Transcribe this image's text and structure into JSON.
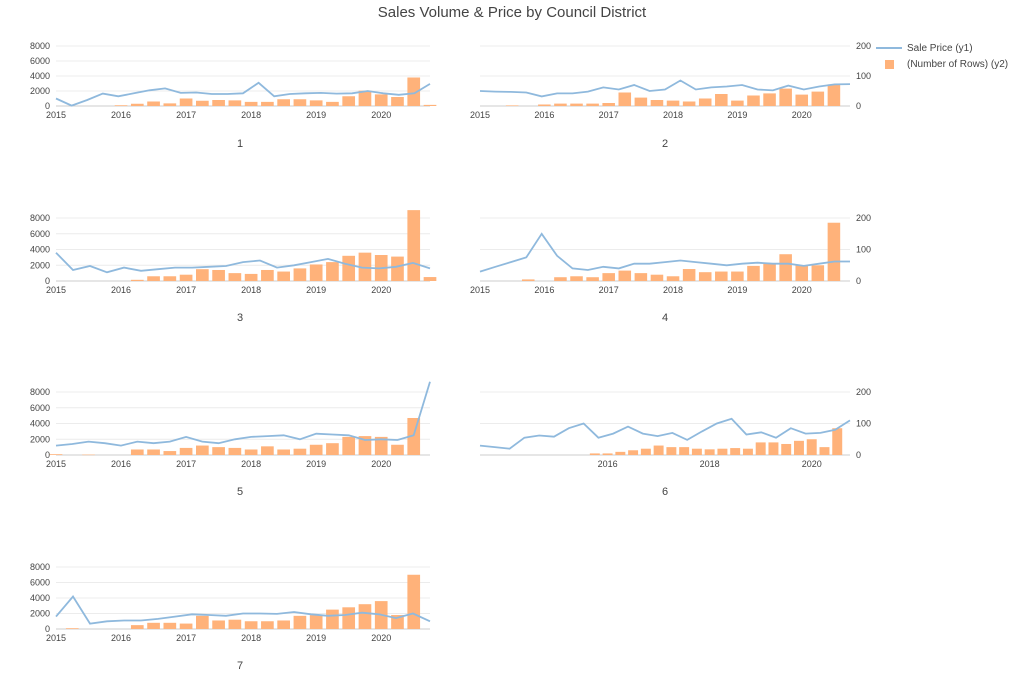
{
  "title": "Sales Volume & Price by Council District",
  "colors": {
    "line": "#8fb9dd",
    "bar": "#ffb27a",
    "grid": "#ececec",
    "axis": "#cccccc",
    "text": "#444444"
  },
  "legend": {
    "line_label": "Sale Price (y1)",
    "bar_label": "(Number of Rows) (y2)"
  },
  "chart_data": [
    {
      "type": "line+bar",
      "facet": "1",
      "y1ticks": [
        "0",
        "2000",
        "4000",
        "6000",
        "8000"
      ],
      "y1range": [
        0,
        8000
      ],
      "xticks": [
        "2015",
        "2016",
        "2017",
        "2018",
        "2019",
        "2020"
      ],
      "line": [
        1000,
        50,
        800,
        1650,
        1300,
        1700,
        2100,
        2350,
        1750,
        1800,
        1600,
        1600,
        1700,
        3100,
        1300,
        1600,
        1700,
        1750,
        1650,
        1700,
        2000,
        1700,
        1500,
        1700,
        2950
      ],
      "bars": [
        {
          "x": 2016.0,
          "v": 100
        },
        {
          "x": 2016.25,
          "v": 300
        },
        {
          "x": 2016.5,
          "v": 600
        },
        {
          "x": 2016.75,
          "v": 350
        },
        {
          "x": 2017.0,
          "v": 1000
        },
        {
          "x": 2017.25,
          "v": 700
        },
        {
          "x": 2017.5,
          "v": 800
        },
        {
          "x": 2017.75,
          "v": 750
        },
        {
          "x": 2018.0,
          "v": 550
        },
        {
          "x": 2018.25,
          "v": 550
        },
        {
          "x": 2018.5,
          "v": 900
        },
        {
          "x": 2018.75,
          "v": 900
        },
        {
          "x": 2019.0,
          "v": 750
        },
        {
          "x": 2019.25,
          "v": 550
        },
        {
          "x": 2019.5,
          "v": 1300
        },
        {
          "x": 2019.75,
          "v": 2050
        },
        {
          "x": 2020.0,
          "v": 1550
        },
        {
          "x": 2020.25,
          "v": 1200
        },
        {
          "x": 2020.5,
          "v": 3800
        },
        {
          "x": 2020.75,
          "v": 150
        }
      ]
    },
    {
      "type": "line+bar",
      "facet": "2",
      "y2ticks": [
        "0",
        "100",
        "200"
      ],
      "y2range": [
        0,
        260
      ],
      "xticks": [
        "2015",
        "2016",
        "2017",
        "2018",
        "2019",
        "2020"
      ],
      "line": [
        50,
        48,
        47,
        45,
        32,
        42,
        42,
        48,
        62,
        55,
        70,
        50,
        55,
        85,
        55,
        62,
        65,
        70,
        55,
        52,
        68,
        55,
        65,
        72,
        73
      ],
      "bars": [
        {
          "x": 2015.5,
          "v": 2
        },
        {
          "x": 2016.0,
          "v": 5
        },
        {
          "x": 2016.25,
          "v": 8
        },
        {
          "x": 2016.5,
          "v": 8
        },
        {
          "x": 2016.75,
          "v": 8
        },
        {
          "x": 2017.0,
          "v": 10
        },
        {
          "x": 2017.25,
          "v": 45
        },
        {
          "x": 2017.5,
          "v": 28
        },
        {
          "x": 2017.75,
          "v": 20
        },
        {
          "x": 2018.0,
          "v": 18
        },
        {
          "x": 2018.25,
          "v": 15
        },
        {
          "x": 2018.5,
          "v": 25
        },
        {
          "x": 2018.75,
          "v": 40
        },
        {
          "x": 2019.0,
          "v": 18
        },
        {
          "x": 2019.25,
          "v": 35
        },
        {
          "x": 2019.5,
          "v": 42
        },
        {
          "x": 2019.75,
          "v": 58
        },
        {
          "x": 2020.0,
          "v": 38
        },
        {
          "x": 2020.25,
          "v": 48
        },
        {
          "x": 2020.5,
          "v": 72
        }
      ]
    },
    {
      "type": "line+bar",
      "facet": "3",
      "y1ticks": [
        "0",
        "2000",
        "4000",
        "6000",
        "8000"
      ],
      "y1range": [
        0,
        8500
      ],
      "xticks": [
        "2015",
        "2016",
        "2017",
        "2018",
        "2019",
        "2020"
      ],
      "line": [
        3600,
        1400,
        1900,
        1100,
        1700,
        1300,
        1500,
        1700,
        1700,
        1800,
        1900,
        2400,
        2600,
        1700,
        2000,
        2400,
        2800,
        2200,
        1700,
        1600,
        1800,
        2300,
        1600
      ],
      "bars": [
        {
          "x": 2016.25,
          "v": 150
        },
        {
          "x": 2016.5,
          "v": 600
        },
        {
          "x": 2016.75,
          "v": 600
        },
        {
          "x": 2017.0,
          "v": 800
        },
        {
          "x": 2017.25,
          "v": 1500
        },
        {
          "x": 2017.5,
          "v": 1400
        },
        {
          "x": 2017.75,
          "v": 1000
        },
        {
          "x": 2018.0,
          "v": 900
        },
        {
          "x": 2018.25,
          "v": 1400
        },
        {
          "x": 2018.5,
          "v": 1200
        },
        {
          "x": 2018.75,
          "v": 1600
        },
        {
          "x": 2019.0,
          "v": 2100
        },
        {
          "x": 2019.25,
          "v": 2400
        },
        {
          "x": 2019.5,
          "v": 3200
        },
        {
          "x": 2019.75,
          "v": 3600
        },
        {
          "x": 2020.0,
          "v": 3300
        },
        {
          "x": 2020.25,
          "v": 3100
        },
        {
          "x": 2020.5,
          "v": 9000
        },
        {
          "x": 2020.75,
          "v": 500
        }
      ]
    },
    {
      "type": "line+bar",
      "facet": "4",
      "y2ticks": [
        "0",
        "100",
        "200"
      ],
      "y2range": [
        0,
        260
      ],
      "xticks": [
        "2015",
        "2016",
        "2017",
        "2018",
        "2019",
        "2020"
      ],
      "line": [
        30,
        45,
        60,
        75,
        150,
        80,
        40,
        35,
        45,
        40,
        55,
        55,
        60,
        65,
        60,
        55,
        50,
        55,
        58,
        55,
        55,
        48,
        55,
        62,
        62
      ],
      "bars": [
        {
          "x": 2015.75,
          "v": 5
        },
        {
          "x": 2016.25,
          "v": 12
        },
        {
          "x": 2016.5,
          "v": 15
        },
        {
          "x": 2016.75,
          "v": 12
        },
        {
          "x": 2017.0,
          "v": 25
        },
        {
          "x": 2017.25,
          "v": 33
        },
        {
          "x": 2017.5,
          "v": 25
        },
        {
          "x": 2017.75,
          "v": 20
        },
        {
          "x": 2018.0,
          "v": 15
        },
        {
          "x": 2018.25,
          "v": 38
        },
        {
          "x": 2018.5,
          "v": 28
        },
        {
          "x": 2018.75,
          "v": 30
        },
        {
          "x": 2019.0,
          "v": 30
        },
        {
          "x": 2019.25,
          "v": 48
        },
        {
          "x": 2019.5,
          "v": 55
        },
        {
          "x": 2019.75,
          "v": 85
        },
        {
          "x": 2020.0,
          "v": 50
        },
        {
          "x": 2020.25,
          "v": 50
        },
        {
          "x": 2020.5,
          "v": 185
        }
      ]
    },
    {
      "type": "line+bar",
      "facet": "5",
      "y1ticks": [
        "0",
        "2000",
        "4000",
        "6000",
        "8000"
      ],
      "y1range": [
        0,
        8500
      ],
      "xticks": [
        "2015",
        "2016",
        "2017",
        "2018",
        "2019",
        "2020"
      ],
      "line": [
        1200,
        1400,
        1700,
        1500,
        1200,
        1700,
        1500,
        1700,
        2300,
        1700,
        1500,
        2000,
        2300,
        2400,
        2500,
        2000,
        2700,
        2600,
        2500,
        1900,
        2000,
        1900,
        2500,
        9300
      ],
      "bars": [
        {
          "x": 2015.0,
          "v": 100
        },
        {
          "x": 2015.5,
          "v": 50
        },
        {
          "x": 2016.25,
          "v": 700
        },
        {
          "x": 2016.5,
          "v": 700
        },
        {
          "x": 2016.75,
          "v": 500
        },
        {
          "x": 2017.0,
          "v": 900
        },
        {
          "x": 2017.25,
          "v": 1200
        },
        {
          "x": 2017.5,
          "v": 1000
        },
        {
          "x": 2017.75,
          "v": 900
        },
        {
          "x": 2018.0,
          "v": 700
        },
        {
          "x": 2018.25,
          "v": 1100
        },
        {
          "x": 2018.5,
          "v": 700
        },
        {
          "x": 2018.75,
          "v": 800
        },
        {
          "x": 2019.0,
          "v": 1300
        },
        {
          "x": 2019.25,
          "v": 1500
        },
        {
          "x": 2019.5,
          "v": 2300
        },
        {
          "x": 2019.75,
          "v": 2400
        },
        {
          "x": 2020.0,
          "v": 2300
        },
        {
          "x": 2020.25,
          "v": 1300
        },
        {
          "x": 2020.5,
          "v": 4700
        }
      ]
    },
    {
      "type": "line+bar",
      "facet": "6",
      "y2ticks": [
        "0",
        "100",
        "200"
      ],
      "y2range": [
        0,
        260
      ],
      "xticks": [
        "2016",
        "2018",
        "2020"
      ],
      "xrange": [
        2013.5,
        2020.75
      ],
      "line": [
        30,
        25,
        20,
        55,
        62,
        58,
        85,
        100,
        55,
        68,
        90,
        68,
        60,
        70,
        48,
        75,
        100,
        115,
        65,
        72,
        55,
        85,
        68,
        70,
        80,
        110
      ],
      "lineStart": 2013.5,
      "bars": [
        {
          "x": 2015.75,
          "v": 5
        },
        {
          "x": 2016.0,
          "v": 5
        },
        {
          "x": 2016.25,
          "v": 10
        },
        {
          "x": 2016.5,
          "v": 15
        },
        {
          "x": 2016.75,
          "v": 20
        },
        {
          "x": 2017.0,
          "v": 30
        },
        {
          "x": 2017.25,
          "v": 25
        },
        {
          "x": 2017.5,
          "v": 25
        },
        {
          "x": 2017.75,
          "v": 20
        },
        {
          "x": 2018.0,
          "v": 18
        },
        {
          "x": 2018.25,
          "v": 20
        },
        {
          "x": 2018.5,
          "v": 22
        },
        {
          "x": 2018.75,
          "v": 20
        },
        {
          "x": 2019.0,
          "v": 40
        },
        {
          "x": 2019.25,
          "v": 40
        },
        {
          "x": 2019.5,
          "v": 35
        },
        {
          "x": 2019.75,
          "v": 45
        },
        {
          "x": 2020.0,
          "v": 50
        },
        {
          "x": 2020.25,
          "v": 25
        },
        {
          "x": 2020.5,
          "v": 85
        }
      ]
    },
    {
      "type": "line+bar",
      "facet": "7",
      "y1ticks": [
        "0",
        "2000",
        "4000",
        "6000",
        "8000"
      ],
      "y1range": [
        0,
        8500
      ],
      "xticks": [
        "2015",
        "2016",
        "2017",
        "2018",
        "2019",
        "2020"
      ],
      "line": [
        1600,
        4200,
        700,
        1000,
        1100,
        1100,
        1300,
        1600,
        1900,
        1800,
        1700,
        2000,
        2000,
        1950,
        2200,
        1900,
        1700,
        1800,
        2100,
        1900,
        1400,
        2000,
        1000
      ],
      "bars": [
        {
          "x": 2015.25,
          "v": 100
        },
        {
          "x": 2016.25,
          "v": 500
        },
        {
          "x": 2016.5,
          "v": 800
        },
        {
          "x": 2016.75,
          "v": 800
        },
        {
          "x": 2017.0,
          "v": 700
        },
        {
          "x": 2017.25,
          "v": 1700
        },
        {
          "x": 2017.5,
          "v": 1100
        },
        {
          "x": 2017.75,
          "v": 1200
        },
        {
          "x": 2018.0,
          "v": 1000
        },
        {
          "x": 2018.25,
          "v": 1000
        },
        {
          "x": 2018.5,
          "v": 1100
        },
        {
          "x": 2018.75,
          "v": 1700
        },
        {
          "x": 2019.0,
          "v": 1800
        },
        {
          "x": 2019.25,
          "v": 2500
        },
        {
          "x": 2019.5,
          "v": 2800
        },
        {
          "x": 2019.75,
          "v": 3200
        },
        {
          "x": 2020.0,
          "v": 3600
        },
        {
          "x": 2020.25,
          "v": 1800
        },
        {
          "x": 2020.5,
          "v": 7000
        }
      ]
    }
  ]
}
